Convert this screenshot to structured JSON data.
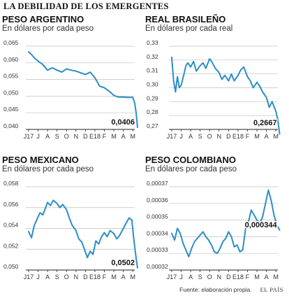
{
  "title": "LA DEBILIDAD DE LOS EMERGENTES",
  "footer": {
    "source": "Fuente: elaboración propia.",
    "brand": "EL PAÍS"
  },
  "colors": {
    "line": "#2b8ec6",
    "grid": "#bfbfbf",
    "axis": "#222222"
  },
  "chart_data": [
    {
      "type": "line",
      "title": "PESO ARGENTINO",
      "subtitle": "En dólares por cada peso",
      "x_ticks": [
        "J17",
        "J",
        "A",
        "S",
        "O",
        "N",
        "D",
        "E18",
        "F",
        "M",
        "A",
        "M"
      ],
      "ylim": [
        0.04,
        0.065
      ],
      "y_ticks": [
        "0,065",
        "0,060",
        "0,055",
        "0,050",
        "0,045",
        "0,040"
      ],
      "y_tick_values": [
        0.065,
        0.06,
        0.055,
        0.05,
        0.045,
        0.04
      ],
      "last_value_label": "0,0406",
      "series": [
        {
          "x": [
            0,
            0.3,
            0.6,
            1.0,
            1.5,
            2.0,
            2.5,
            3.0,
            3.5,
            4.0,
            4.5,
            5.0,
            5.5,
            6.0,
            6.5,
            7.0,
            7.5,
            8.0,
            8.5,
            9.0,
            9.5,
            10.0,
            10.5,
            11.0,
            11.2,
            11.35,
            11.5
          ],
          "y": [
            0.0633,
            0.0625,
            0.0615,
            0.0605,
            0.0595,
            0.0578,
            0.0585,
            0.0578,
            0.0572,
            0.0582,
            0.0578,
            0.0575,
            0.057,
            0.0565,
            0.0572,
            0.0555,
            0.053,
            0.0525,
            0.0515,
            0.0502,
            0.0497,
            0.0497,
            0.0496,
            0.0496,
            0.048,
            0.045,
            0.0406
          ]
        }
      ]
    },
    {
      "type": "line",
      "title": "REAL BRASILEÑO",
      "subtitle": "En dólares por cada real",
      "x_ticks": [
        "J17",
        "J",
        "A",
        "S",
        "O",
        "N",
        "D",
        "E18",
        "F",
        "M",
        "A",
        "M"
      ],
      "ylim": [
        0.27,
        0.33
      ],
      "y_ticks": [
        "0,33",
        "0,32",
        "0,31",
        "0,30",
        "0,29",
        "0,28",
        "0,27"
      ],
      "y_tick_values": [
        0.33,
        0.32,
        0.31,
        0.3,
        0.29,
        0.28,
        0.27
      ],
      "last_value_label": "0,2667",
      "series": [
        {
          "x": [
            0,
            0.2,
            0.4,
            0.6,
            0.8,
            1.0,
            1.3,
            1.5,
            1.7,
            2.0,
            2.3,
            2.6,
            3.0,
            3.3,
            3.6,
            4.0,
            4.3,
            4.6,
            5.0,
            5.3,
            5.6,
            6.0,
            6.3,
            6.6,
            7.0,
            7.3,
            7.6,
            8.0,
            8.3,
            8.6,
            9.0,
            9.3,
            9.6,
            10.0,
            10.3,
            10.6,
            11.0,
            11.2,
            11.4
          ],
          "y": [
            0.322,
            0.305,
            0.297,
            0.308,
            0.3,
            0.302,
            0.31,
            0.316,
            0.318,
            0.315,
            0.319,
            0.312,
            0.316,
            0.318,
            0.314,
            0.321,
            0.318,
            0.314,
            0.311,
            0.306,
            0.309,
            0.305,
            0.31,
            0.305,
            0.309,
            0.313,
            0.315,
            0.308,
            0.305,
            0.3,
            0.304,
            0.301,
            0.297,
            0.293,
            0.286,
            0.29,
            0.283,
            0.277,
            0.2667
          ]
        }
      ]
    },
    {
      "type": "line",
      "title": "PESO MEXICANO",
      "subtitle": "En dólares por cada peso",
      "x_ticks": [
        "J17",
        "J",
        "A",
        "S",
        "O",
        "N",
        "D",
        "E18",
        "F",
        "M",
        "A",
        "M"
      ],
      "ylim": [
        0.05,
        0.058
      ],
      "y_ticks": [
        "0,058",
        "0,056",
        "0,054",
        "0,052",
        "0,050"
      ],
      "y_tick_values": [
        0.058,
        0.056,
        0.054,
        0.052,
        0.05
      ],
      "last_value_label": "0,0502",
      "series": [
        {
          "x": [
            0,
            0.3,
            0.6,
            0.9,
            1.2,
            1.5,
            1.8,
            2.0,
            2.3,
            2.6,
            3.0,
            3.3,
            3.6,
            4.0,
            4.3,
            4.6,
            5.0,
            5.3,
            5.6,
            5.9,
            6.2,
            6.5,
            6.8,
            7.1,
            7.4,
            7.7,
            8.0,
            8.3,
            8.6,
            9.0,
            9.3,
            9.6,
            10.0,
            10.3,
            10.6,
            10.9,
            11.1,
            11.3,
            11.5
          ],
          "y": [
            0.0537,
            0.0531,
            0.0543,
            0.0549,
            0.0555,
            0.0553,
            0.056,
            0.0565,
            0.0562,
            0.0567,
            0.0564,
            0.056,
            0.0563,
            0.0558,
            0.055,
            0.0543,
            0.0538,
            0.053,
            0.0527,
            0.052,
            0.0512,
            0.0518,
            0.0515,
            0.0528,
            0.0525,
            0.0532,
            0.0536,
            0.0532,
            0.0538,
            0.0535,
            0.053,
            0.0533,
            0.054,
            0.0545,
            0.055,
            0.0548,
            0.053,
            0.0515,
            0.0502
          ]
        }
      ]
    },
    {
      "type": "line",
      "title": "PESO COLOMBIANO",
      "subtitle": "En dólares por cada peso",
      "x_ticks": [
        "J17",
        "J",
        "A",
        "S",
        "O",
        "N",
        "D",
        "E18",
        "F",
        "M",
        "A",
        "M"
      ],
      "ylim": [
        0.00032,
        0.00037
      ],
      "y_ticks": [
        "0,00037",
        "0,00036",
        "0,00035",
        "0,00034",
        "0,00033",
        "0,00032"
      ],
      "y_tick_values": [
        0.00037,
        0.00036,
        0.00035,
        0.00034,
        0.00033,
        0.00032
      ],
      "last_value_label": "0,000344",
      "series": [
        {
          "x": [
            0,
            0.3,
            0.6,
            0.9,
            1.2,
            1.5,
            1.8,
            2.1,
            2.4,
            2.7,
            3.0,
            3.3,
            3.6,
            3.9,
            4.2,
            4.5,
            4.8,
            5.1,
            5.4,
            5.7,
            6.0,
            6.3,
            6.6,
            6.9,
            7.2,
            7.5,
            7.8,
            8.1,
            8.4,
            8.7,
            9.0,
            9.3,
            9.6,
            9.9,
            10.2,
            10.5,
            10.8,
            11.1,
            11.4
          ],
          "y": [
            0.000342,
            0.000338,
            0.000345,
            0.000342,
            0.000336,
            0.000332,
            0.000328,
            0.000333,
            0.000337,
            0.000339,
            0.000341,
            0.000343,
            0.00034,
            0.000338,
            0.000335,
            0.000331,
            0.00033,
            0.000333,
            0.000337,
            0.000339,
            0.000343,
            0.00034,
            0.000334,
            0.000335,
            0.000331,
            0.000332,
            0.000345,
            0.000349,
            0.000356,
            0.000353,
            0.00035,
            0.000348,
            0.000352,
            0.00036,
            0.000368,
            0.000362,
            0.000353,
            0.000347,
            0.000344
          ]
        }
      ]
    }
  ]
}
